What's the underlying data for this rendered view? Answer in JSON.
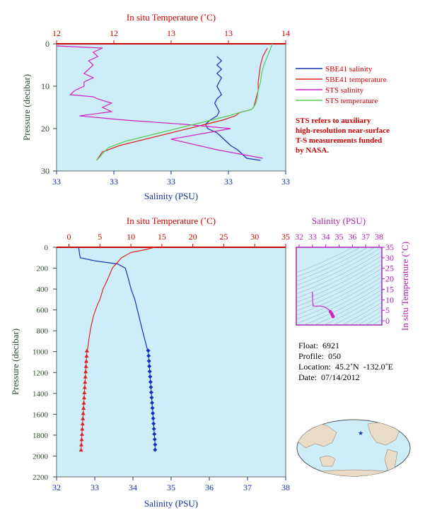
{
  "chart_data": [
    {
      "type": "line",
      "title": "",
      "xlabel_top": "In situ Temperature (˚C)",
      "xlabel_bottom": "Salinity (PSU)",
      "ylabel": "Pressure (decibar)",
      "top_ticks": [
        "12",
        "12",
        "13",
        "13",
        "14"
      ],
      "bottom_ticks": [
        "33",
        "33",
        "33",
        "33",
        "33"
      ],
      "y_ticks": [
        "0",
        "10",
        "20",
        "30"
      ],
      "xlim_temperature": [
        12.0,
        14.0
      ],
      "xlim_salinity": [
        32.95,
        33.0
      ],
      "ylim": [
        30,
        0
      ],
      "grid": false,
      "legend_position": "right",
      "series": [
        {
          "name": "SBE41 salinity",
          "color": "#1030c0",
          "axis": "salinity",
          "x": [
            32.985,
            32.986,
            32.985,
            32.986,
            32.985,
            32.986,
            32.9855,
            32.985,
            32.9855,
            32.986,
            32.985,
            32.9845,
            32.985,
            32.9855,
            32.985,
            32.9835,
            32.9825,
            32.983,
            32.985,
            32.986,
            32.987,
            32.988,
            32.9895,
            32.9905,
            32.9915,
            32.9945
          ],
          "y": [
            3,
            4,
            5,
            6,
            7,
            8,
            9,
            10,
            11,
            12,
            13,
            14,
            15,
            16,
            17,
            18,
            19,
            20,
            21,
            22,
            23,
            24,
            25,
            26,
            27,
            27.5
          ]
        },
        {
          "name": "SBE41 temperature",
          "color": "#dd2222",
          "axis": "temperature",
          "x": [
            13.84,
            13.8,
            13.78,
            13.77,
            13.76,
            13.76,
            13.74,
            13.73,
            13.72,
            13.7,
            13.66,
            13.6,
            13.56,
            13.45,
            13.3,
            13.15,
            13.0,
            12.85,
            12.7,
            12.55,
            12.4,
            12.35
          ],
          "y": [
            1,
            3,
            5,
            7,
            9,
            11,
            13,
            14,
            15,
            15.5,
            15.8,
            16.2,
            17,
            18,
            19,
            20,
            21,
            22,
            23,
            24,
            25.5,
            27.5
          ]
        },
        {
          "name": "STS salinity",
          "color": "#d020c8",
          "axis": "salinity",
          "x": [
            32.95,
            32.96,
            32.958,
            32.959,
            32.957,
            32.958,
            32.957,
            32.956,
            32.958,
            32.956,
            32.956,
            32.954,
            32.953,
            32.958,
            32.959,
            32.962,
            32.96,
            32.962,
            32.955,
            32.965,
            32.978,
            32.988,
            32.975,
            32.985,
            32.995
          ],
          "y": [
            0.5,
            1,
            2,
            3,
            4,
            5,
            6,
            7,
            8,
            9,
            10,
            11,
            12,
            12.5,
            13,
            14,
            15,
            16,
            17,
            18,
            19,
            20,
            22.5,
            25,
            27
          ]
        },
        {
          "name": "STS temperature",
          "color": "#55cc55",
          "axis": "temperature",
          "x": [
            13.88,
            13.87,
            13.84,
            13.81,
            13.79,
            13.78,
            13.76,
            13.75,
            13.74,
            13.72,
            13.7,
            13.66,
            13.6,
            13.5,
            13.35,
            13.2,
            13.05,
            12.9,
            12.75,
            12.6,
            12.45,
            12.35
          ],
          "y": [
            0,
            1,
            3,
            5,
            7,
            9,
            11,
            13,
            14,
            15,
            15.5,
            15.8,
            16.2,
            17,
            18,
            19,
            20,
            21,
            22,
            23,
            24.5,
            27.5
          ]
        }
      ],
      "note": "STS refers to auxiliary high-resolution near-surface T-S measurements funded by NASA."
    },
    {
      "type": "line",
      "title": "",
      "xlabel_top": "In situ Temperature (˚C)",
      "xlabel_bottom": "Salinity (PSU)",
      "ylabel": "Pressure (decibar)",
      "top_ticks": [
        "0",
        "5",
        "10",
        "15",
        "20",
        "25",
        "30",
        "35"
      ],
      "bottom_ticks": [
        "32",
        "33",
        "34",
        "35",
        "36",
        "37",
        "38"
      ],
      "y_ticks": [
        "0",
        "200",
        "400",
        "600",
        "800",
        "1000",
        "1200",
        "1400",
        "1600",
        "1800",
        "2000",
        "2200"
      ],
      "xlim_temperature": [
        -2,
        35
      ],
      "xlim_salinity": [
        32,
        38
      ],
      "ylim": [
        2200,
        0
      ],
      "grid": false,
      "series": [
        {
          "name": "Salinity profile",
          "color": "#1030c0",
          "axis": "salinity",
          "x": [
            32.58,
            32.6,
            32.62,
            33.0,
            33.6,
            33.8,
            33.88,
            33.95,
            34.05,
            34.15,
            34.25,
            34.38
          ],
          "y": [
            0,
            60,
            100,
            130,
            160,
            200,
            300,
            400,
            500,
            650,
            800,
            980
          ]
        },
        {
          "name": "Temperature profile",
          "color": "#dd2222",
          "axis": "temperature",
          "x": [
            13.8,
            12.5,
            10.0,
            8.5,
            7.0,
            6.3,
            5.5,
            5.0,
            4.6,
            4.0,
            3.6,
            3.3,
            3.0
          ],
          "y": [
            0,
            20,
            50,
            100,
            200,
            300,
            400,
            500,
            550,
            650,
            750,
            850,
            980
          ]
        },
        {
          "name": "Salinity bottle samples",
          "color": "#1030c0",
          "axis": "salinity",
          "marker": "diamond",
          "x": [
            34.4,
            34.41,
            34.42,
            34.43,
            34.44,
            34.45,
            34.46,
            34.47,
            34.48,
            34.49,
            34.5,
            34.51,
            34.52,
            34.53,
            34.54,
            34.55,
            34.56,
            34.57,
            34.58,
            34.58
          ],
          "y": [
            990,
            1040,
            1090,
            1140,
            1190,
            1240,
            1290,
            1340,
            1390,
            1440,
            1490,
            1540,
            1590,
            1640,
            1690,
            1740,
            1790,
            1840,
            1890,
            1940
          ]
        },
        {
          "name": "Temperature bottle samples",
          "color": "#dd2222",
          "axis": "temperature",
          "marker": "triangle",
          "x": [
            2.9,
            2.85,
            2.8,
            2.75,
            2.7,
            2.65,
            2.6,
            2.55,
            2.5,
            2.45,
            2.4,
            2.35,
            2.3,
            2.25,
            2.2,
            2.15,
            2.1,
            2.05,
            2.0,
            1.95
          ],
          "y": [
            990,
            1040,
            1090,
            1140,
            1190,
            1240,
            1290,
            1340,
            1390,
            1440,
            1490,
            1540,
            1590,
            1640,
            1690,
            1740,
            1790,
            1840,
            1890,
            1940
          ]
        }
      ]
    },
    {
      "type": "scatter",
      "title": "",
      "xlabel_top": "Salinity (PSU)",
      "ylabel_right": "In situ Temperature (˚C)",
      "top_ticks": [
        "32",
        "33",
        "34",
        "35",
        "36",
        "37",
        "38"
      ],
      "right_ticks": [
        "0",
        "5",
        "10",
        "15",
        "20",
        "25",
        "30",
        "35"
      ],
      "xlim": [
        32,
        38
      ],
      "ylim": [
        -2,
        35
      ],
      "series": [
        {
          "name": "T-S profile",
          "color": "#d020c8",
          "x": [
            33.0,
            33.02,
            33.05,
            33.6,
            33.9,
            34.2,
            34.35,
            34.45,
            34.5,
            34.55
          ],
          "y": [
            13.8,
            9.0,
            7.0,
            7.0,
            6.6,
            5.5,
            4.3,
            3.3,
            2.6,
            2.0
          ]
        }
      ]
    }
  ],
  "legend": {
    "sbe41_salinity": "SBE41 salinity",
    "sbe41_temperature": "SBE41 temperature",
    "sts_salinity": "STS salinity",
    "sts_temperature": "STS temperature",
    "colors": {
      "sbe41_salinity": "#1030c0",
      "sbe41_temperature": "#dd2222",
      "sts_salinity": "#d020c8",
      "sts_temperature": "#55cc55"
    }
  },
  "note_lines": [
    "STS refers to auxiliary",
    "high-resolution near-surface",
    "T-S measurements funded",
    "by NASA."
  ],
  "float_info": {
    "float": "Float:  6921",
    "profile": "Profile:  050",
    "location": "Location:  45.2˚N  -132.0˚E",
    "date": "Date:  07/14/2012"
  },
  "colors": {
    "plot_bg": "#cdeef8",
    "temperature_axis": "#cc0000",
    "salinity_axis": "#1030a0",
    "pressure_axis": "#2d4a2d",
    "ts_axis": "#b020b0"
  }
}
